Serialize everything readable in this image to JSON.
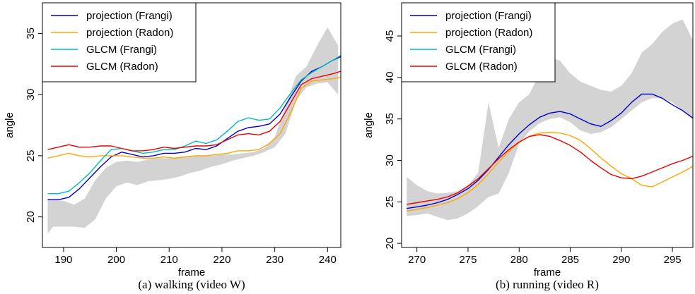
{
  "chart_data": [
    {
      "type": "line",
      "caption": "(a)  walking (video W)",
      "xlabel": "frame",
      "ylabel": "angle",
      "xlim": [
        186,
        242.5
      ],
      "ylim": [
        17.5,
        37.5
      ],
      "xticks": [
        190,
        200,
        210,
        220,
        230,
        240
      ],
      "yticks": [
        20,
        25,
        30,
        35
      ],
      "legend_position": "top-left",
      "band": {
        "color": "#d3d3d3",
        "x": [
          187,
          188,
          190,
          192,
          194,
          196,
          198,
          200,
          202,
          204,
          206,
          208,
          210,
          212,
          214,
          216,
          218,
          220,
          222,
          224,
          226,
          228,
          230,
          232,
          234,
          236,
          238,
          240,
          242
        ],
        "upper": [
          21.5,
          21.4,
          21.3,
          21.0,
          21.5,
          23.0,
          24.0,
          24.5,
          24.6,
          24.5,
          24.7,
          24.8,
          24.8,
          24.9,
          25.0,
          25.0,
          25.0,
          25.1,
          25.1,
          25.2,
          25.3,
          25.6,
          26.5,
          29.0,
          31.5,
          32.3,
          34.0,
          35.5,
          34.0
        ],
        "lower": [
          18.6,
          19.2,
          19.2,
          19.2,
          19.1,
          19.8,
          21.5,
          22.5,
          22.8,
          22.6,
          22.9,
          23.0,
          23.1,
          23.3,
          23.6,
          23.8,
          24.1,
          24.3,
          24.6,
          24.8,
          25.0,
          25.3,
          25.7,
          26.8,
          29.5,
          30.6,
          30.9,
          31.0,
          30.0
        ]
      },
      "series": [
        {
          "name": "projection (Frangi)",
          "color": "#0000cc",
          "x": [
            187,
            189,
            191,
            193,
            195,
            197,
            199,
            201,
            203,
            205,
            207,
            209,
            211,
            213,
            215,
            217,
            219,
            221,
            223,
            225,
            227,
            229,
            231,
            233,
            235,
            237,
            239,
            241,
            242.5
          ],
          "y": [
            21.4,
            21.4,
            21.6,
            22.3,
            23.2,
            24.1,
            24.9,
            25.3,
            25.1,
            24.9,
            25.0,
            25.2,
            25.2,
            25.3,
            25.6,
            25.5,
            25.8,
            26.4,
            27.0,
            27.3,
            27.4,
            27.6,
            28.4,
            29.8,
            31.1,
            31.9,
            32.3,
            32.8,
            33.1
          ]
        },
        {
          "name": "projection (Radon)",
          "color": "#ffa500",
          "x": [
            187,
            189,
            191,
            193,
            195,
            197,
            199,
            201,
            203,
            205,
            207,
            209,
            211,
            213,
            215,
            217,
            219,
            221,
            223,
            225,
            227,
            229,
            231,
            233,
            235,
            237,
            239,
            241,
            242.5
          ],
          "y": [
            24.8,
            25.0,
            25.2,
            25.0,
            24.9,
            25.0,
            25.0,
            25.0,
            24.9,
            24.8,
            24.8,
            24.9,
            24.8,
            24.9,
            25.0,
            25.0,
            25.1,
            25.2,
            25.4,
            25.4,
            25.5,
            26.0,
            26.8,
            28.5,
            30.5,
            31.1,
            31.2,
            31.3,
            31.4
          ]
        },
        {
          "name": "GLCM (Frangi)",
          "color": "#00bcbc",
          "x": [
            187,
            189,
            191,
            193,
            195,
            197,
            199,
            201,
            203,
            205,
            207,
            209,
            211,
            213,
            215,
            217,
            219,
            221,
            223,
            225,
            227,
            229,
            231,
            233,
            235,
            237,
            239,
            241,
            242.5
          ],
          "y": [
            21.9,
            21.9,
            22.1,
            22.8,
            23.6,
            24.6,
            25.5,
            25.6,
            25.4,
            25.2,
            25.3,
            25.5,
            25.5,
            25.8,
            26.2,
            26.0,
            26.3,
            27.0,
            27.8,
            28.1,
            27.9,
            28.0,
            28.9,
            30.1,
            31.2,
            31.8,
            32.3,
            32.8,
            33.2
          ]
        },
        {
          "name": "GLCM (Radon)",
          "color": "#ee0000",
          "x": [
            187,
            189,
            191,
            193,
            195,
            197,
            199,
            201,
            203,
            205,
            207,
            209,
            211,
            213,
            215,
            217,
            219,
            221,
            223,
            225,
            227,
            229,
            231,
            233,
            235,
            237,
            239,
            241,
            242.5
          ],
          "y": [
            25.5,
            25.7,
            25.9,
            25.7,
            25.7,
            25.8,
            25.8,
            25.6,
            25.4,
            25.4,
            25.5,
            25.7,
            25.6,
            25.7,
            25.8,
            25.8,
            25.9,
            26.3,
            26.7,
            26.8,
            26.7,
            27.0,
            27.8,
            29.3,
            30.8,
            31.3,
            31.5,
            31.7,
            31.9
          ]
        }
      ]
    },
    {
      "type": "line",
      "caption": "(b)  running (video R)",
      "xlabel": "frame",
      "ylabel": "angle",
      "xlim": [
        268.5,
        297
      ],
      "ylim": [
        19.5,
        49
      ],
      "xticks": [
        270,
        275,
        280,
        285,
        290,
        295
      ],
      "yticks": [
        20,
        25,
        30,
        35,
        40,
        45
      ],
      "legend_position": "top-left",
      "band": {
        "color": "#d3d3d3",
        "x": [
          269,
          270,
          271,
          272,
          273,
          274,
          275,
          276,
          277,
          278,
          279,
          280,
          281,
          282,
          283,
          284,
          285,
          286,
          287,
          288,
          289,
          290,
          291,
          292,
          293,
          294,
          295,
          296,
          297
        ],
        "upper": [
          28.0,
          27.0,
          26.3,
          26.0,
          26.1,
          26.3,
          27.0,
          28.5,
          37.0,
          31.5,
          35.0,
          37.0,
          38.0,
          40.5,
          42.5,
          42.0,
          40.5,
          39.5,
          39.0,
          38.5,
          38.3,
          39.0,
          40.5,
          43.0,
          44.0,
          45.5,
          46.5,
          47.0,
          44.5
        ],
        "lower": [
          23.3,
          23.4,
          23.6,
          23.2,
          22.8,
          23.0,
          23.6,
          24.5,
          25.6,
          26.0,
          28.5,
          32.0,
          33.5,
          34.5,
          35.0,
          35.2,
          34.6,
          33.6,
          33.2,
          33.4,
          34.0,
          35.0,
          36.0,
          37.0,
          37.5,
          37.5,
          37.0,
          36.0,
          35.0
        ]
      },
      "series": [
        {
          "name": "projection (Frangi)",
          "color": "#0000cc",
          "x": [
            269,
            270,
            271,
            272,
            273,
            274,
            275,
            276,
            277,
            278,
            279,
            280,
            281,
            282,
            283,
            284,
            285,
            286,
            287,
            288,
            289,
            290,
            291,
            292,
            293,
            294,
            295,
            296,
            297
          ],
          "y": [
            24.2,
            24.4,
            24.6,
            24.9,
            25.3,
            25.9,
            26.6,
            27.6,
            28.9,
            30.4,
            31.9,
            33.2,
            34.3,
            35.2,
            35.7,
            35.9,
            35.6,
            35.0,
            34.4,
            34.1,
            34.8,
            35.7,
            37.0,
            38.0,
            38.0,
            37.5,
            36.7,
            36.0,
            35.1
          ]
        },
        {
          "name": "projection (Radon)",
          "color": "#ffa500",
          "x": [
            269,
            270,
            271,
            272,
            273,
            274,
            275,
            276,
            277,
            278,
            279,
            280,
            281,
            282,
            283,
            284,
            285,
            286,
            287,
            288,
            289,
            290,
            291,
            292,
            293,
            294,
            295,
            296,
            297
          ],
          "y": [
            23.9,
            24.1,
            24.3,
            24.6,
            24.9,
            25.4,
            26.1,
            27.1,
            28.4,
            29.8,
            31.1,
            32.2,
            32.9,
            33.3,
            33.4,
            33.3,
            33.0,
            32.4,
            31.4,
            30.3,
            29.3,
            28.4,
            27.8,
            27.0,
            26.8,
            27.4,
            28.0,
            28.6,
            29.3
          ]
        },
        {
          "name": "GLCM (Frangi)",
          "color": "#00bcbc",
          "x": [],
          "y": []
        },
        {
          "name": "GLCM (Radon)",
          "color": "#ee0000",
          "x": [
            269,
            270,
            271,
            272,
            273,
            274,
            275,
            276,
            277,
            278,
            279,
            280,
            281,
            282,
            283,
            284,
            285,
            286,
            287,
            288,
            289,
            290,
            291,
            292,
            293,
            294,
            295,
            296,
            297
          ],
          "y": [
            24.7,
            24.9,
            25.1,
            25.3,
            25.6,
            26.1,
            26.9,
            27.8,
            29.0,
            30.2,
            31.3,
            32.2,
            32.9,
            33.1,
            32.9,
            32.4,
            31.8,
            31.0,
            30.0,
            29.1,
            28.3,
            27.9,
            27.8,
            28.1,
            28.6,
            29.1,
            29.6,
            30.0,
            30.5
          ]
        }
      ]
    }
  ]
}
